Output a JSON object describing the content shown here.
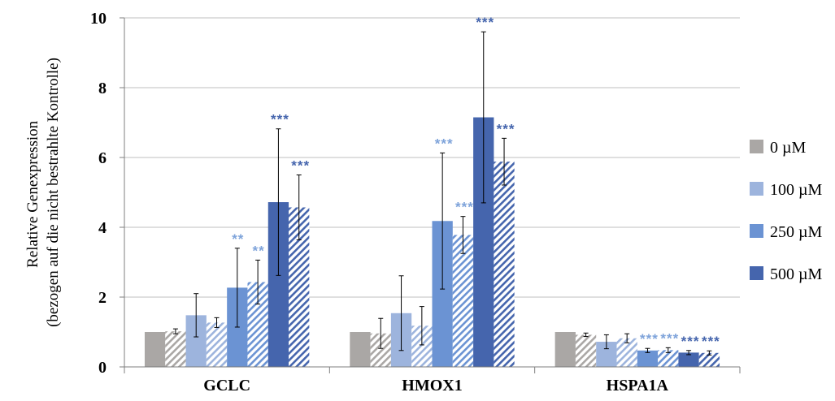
{
  "chart_data": {
    "type": "bar",
    "categories": [
      "GCLC",
      "HMOX1",
      "HSPA1A"
    ],
    "ylabel_lines": [
      "Relative Genexpression",
      "(bezogen auf die nicht bestrahlte Kontrolle)"
    ],
    "ylim": [
      0,
      10
    ],
    "yticks": [
      0,
      2,
      4,
      6,
      8,
      10
    ],
    "grid": true,
    "legend_position": "right",
    "legend": [
      {
        "label": "0 µM",
        "color": "#aaa7a5"
      },
      {
        "label": "100 µM",
        "color": "#9db4dd"
      },
      {
        "label": "250 µM",
        "color": "#6b93d3"
      },
      {
        "label": "500 µM",
        "color": "#4565ad"
      }
    ],
    "bars_per_group": [
      {
        "conc": "0 µM",
        "pattern": "solid",
        "color": "#aaa7a5"
      },
      {
        "conc": "0 µM",
        "pattern": "hatched",
        "color": "#aaa7a5"
      },
      {
        "conc": "100 µM",
        "pattern": "solid",
        "color": "#9db4dd"
      },
      {
        "conc": "100 µM",
        "pattern": "hatched",
        "color": "#9db4dd"
      },
      {
        "conc": "250 µM",
        "pattern": "solid",
        "color": "#6b93d3"
      },
      {
        "conc": "250 µM",
        "pattern": "hatched",
        "color": "#6b93d3"
      },
      {
        "conc": "500 µM",
        "pattern": "solid",
        "color": "#4565ad"
      },
      {
        "conc": "500 µM",
        "pattern": "hatched",
        "color": "#4565ad"
      }
    ],
    "groups": [
      {
        "name": "GCLC",
        "values": [
          1.0,
          1.02,
          1.48,
          1.27,
          2.27,
          2.43,
          4.72,
          4.57
        ],
        "errors": [
          0.0,
          0.07,
          0.62,
          0.14,
          1.13,
          0.63,
          2.1,
          0.93
        ],
        "significance": [
          "",
          "",
          "",
          "",
          "**",
          "**",
          "***",
          "***"
        ]
      },
      {
        "name": "HMOX1",
        "values": [
          1.0,
          0.96,
          1.54,
          1.18,
          4.18,
          3.78,
          7.15,
          5.88
        ],
        "errors": [
          0.0,
          0.43,
          1.07,
          0.55,
          1.95,
          0.53,
          2.45,
          0.67
        ],
        "significance": [
          "",
          "",
          "",
          "",
          "***",
          "***",
          "***",
          "***"
        ]
      },
      {
        "name": "HSPA1A",
        "values": [
          1.0,
          0.92,
          0.72,
          0.82,
          0.47,
          0.48,
          0.41,
          0.4
        ],
        "errors": [
          0.0,
          0.05,
          0.2,
          0.13,
          0.06,
          0.07,
          0.06,
          0.06
        ],
        "significance": [
          "",
          "",
          "",
          "",
          "***",
          "***",
          "***",
          "***"
        ]
      }
    ],
    "significance_colors": {
      "250 µM": "#7ea3da",
      "500 µM": "#4565ad"
    }
  }
}
